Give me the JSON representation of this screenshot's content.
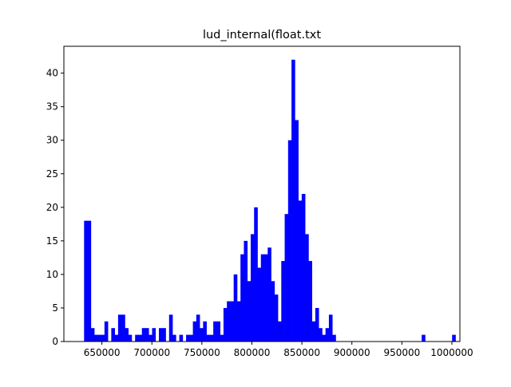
{
  "chart_data": {
    "type": "bar",
    "title": "lud_internal(float.txt",
    "xlabel": "",
    "ylabel": "",
    "xlim": [
      612000,
      1008000
    ],
    "ylim": [
      0,
      44
    ],
    "grid": false,
    "bar_color": "#0000ff",
    "bin_width": 3400,
    "x_ticks": [
      650000,
      700000,
      750000,
      800000,
      850000,
      900000,
      950000,
      1000000
    ],
    "x_tick_labels": [
      "650000",
      "700000",
      "750000",
      "800000",
      "850000",
      "900000",
      "950000",
      "1000000"
    ],
    "y_ticks": [
      0,
      5,
      10,
      15,
      20,
      25,
      30,
      35,
      40
    ],
    "y_tick_labels": [
      "0",
      "5",
      "10",
      "15",
      "20",
      "25",
      "30",
      "35",
      "40"
    ],
    "series": [
      {
        "x": [
          633900,
          637300,
          640700,
          644100,
          647500,
          650900,
          654300,
          657700,
          661100,
          664500,
          667900,
          671300,
          674700,
          678100,
          681500,
          684900,
          688300,
          691700,
          695100,
          698500,
          701900,
          705300,
          708700,
          712100,
          715500,
          718900,
          722300,
          725700,
          729100,
          732500,
          735900,
          739300,
          742700,
          746100,
          749500,
          752900,
          756300,
          759700,
          763100,
          766500,
          769900,
          773300,
          776700,
          780100,
          783500,
          786900,
          790300,
          793700,
          797100,
          800500,
          803900,
          807300,
          810700,
          814100,
          817500,
          820900,
          824300,
          827700,
          831100,
          834500,
          837900,
          841300,
          844700,
          848100,
          851500,
          854900,
          858300,
          861700,
          865100,
          868500,
          871900,
          875300,
          878700,
          882100,
          885500,
          888900,
          892300,
          895700,
          899100,
          971500,
          1001900
        ],
        "values": [
          18,
          18,
          2,
          1,
          1,
          1,
          3,
          0,
          2,
          1,
          4,
          4,
          2,
          1,
          0,
          1,
          1,
          2,
          2,
          1,
          2,
          0,
          2,
          2,
          0,
          4,
          1,
          0,
          1,
          0,
          1,
          1,
          3,
          4,
          2,
          3,
          1,
          1,
          3,
          3,
          1,
          5,
          6,
          6,
          10,
          6,
          13,
          15,
          9,
          16,
          20,
          11,
          13,
          13,
          14,
          9,
          7,
          3,
          12,
          19,
          30,
          42,
          33,
          21,
          22,
          16,
          12,
          3,
          5,
          2,
          1,
          2,
          4,
          1,
          0,
          0,
          0,
          0,
          0,
          1,
          1
        ]
      }
    ]
  }
}
